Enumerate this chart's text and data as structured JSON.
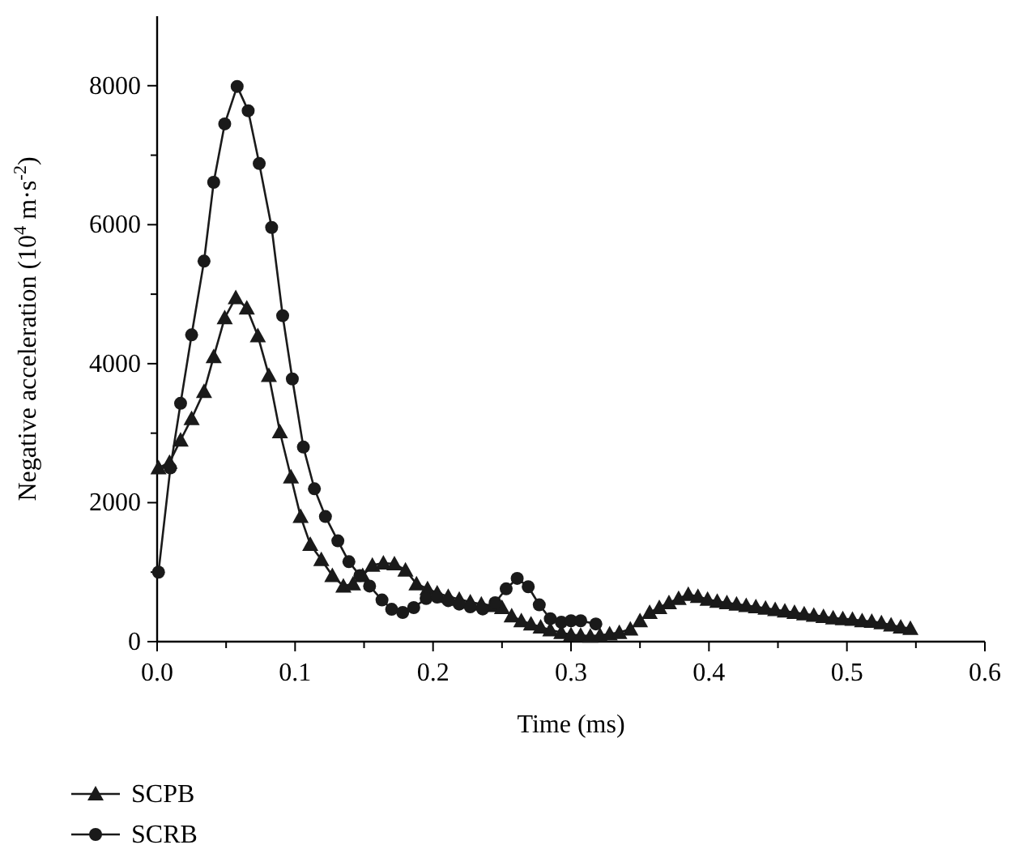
{
  "chart_data": {
    "type": "line",
    "xlabel": "Time (ms)",
    "ylabel": "Negative acceleration (10$^{4}$ m·s$^{-2}$)",
    "xlim": [
      0,
      0.6
    ],
    "ylim": [
      0,
      9000
    ],
    "xticks": [
      {
        "value": 0,
        "label": "0.0"
      },
      {
        "value": 0.05,
        "label": null
      },
      {
        "value": 0.1,
        "label": "0.1"
      },
      {
        "value": 0.15,
        "label": null
      },
      {
        "value": 0.2,
        "label": "0.2"
      },
      {
        "value": 0.25,
        "label": null
      },
      {
        "value": 0.3,
        "label": "0.3"
      },
      {
        "value": 0.35,
        "label": null
      },
      {
        "value": 0.4,
        "label": "0.4"
      },
      {
        "value": 0.45,
        "label": null
      },
      {
        "value": 0.5,
        "label": "0.5"
      },
      {
        "value": 0.55,
        "label": null
      },
      {
        "value": 0.6,
        "label": "0.6"
      }
    ],
    "yticks": [
      0,
      {
        "value": 1000,
        "label": null
      },
      2000,
      {
        "value": 3000,
        "label": null
      },
      4000,
      {
        "value": 5000,
        "label": null
      },
      6000,
      {
        "value": 7000,
        "label": null
      },
      8000
    ],
    "grid": false,
    "legend": "bottom",
    "line_style": "solid",
    "series": [
      {
        "name": "SCPB",
        "color": "#1a1a1a",
        "marker": "triangle",
        "x": [
          0.001,
          0.009,
          0.017,
          0.025,
          0.034,
          0.041,
          0.049,
          0.057,
          0.065,
          0.073,
          0.081,
          0.089,
          0.097,
          0.104,
          0.111,
          0.119,
          0.127,
          0.135,
          0.142,
          0.149,
          0.156,
          0.164,
          0.172,
          0.18,
          0.188,
          0.196,
          0.203,
          0.211,
          0.219,
          0.227,
          0.235,
          0.243,
          0.25,
          0.257,
          0.264,
          0.271,
          0.278,
          0.285,
          0.293,
          0.3,
          0.307,
          0.314,
          0.321,
          0.328,
          0.335,
          0.343,
          0.35,
          0.357,
          0.364,
          0.371,
          0.378,
          0.385,
          0.392,
          0.399,
          0.406,
          0.413,
          0.42,
          0.427,
          0.434,
          0.441,
          0.448,
          0.455,
          0.462,
          0.469,
          0.476,
          0.483,
          0.49,
          0.497,
          0.504,
          0.511,
          0.518,
          0.525,
          0.532,
          0.539,
          0.546
        ],
        "values": [
          2500,
          2580,
          2900,
          3210,
          3600,
          4100,
          4660,
          4950,
          4800,
          4400,
          3830,
          3020,
          2370,
          1800,
          1400,
          1180,
          950,
          800,
          830,
          950,
          1100,
          1130,
          1120,
          1030,
          830,
          760,
          700,
          650,
          610,
          570,
          540,
          520,
          490,
          370,
          300,
          255,
          210,
          170,
          130,
          100,
          90,
          80,
          90,
          110,
          130,
          180,
          300,
          420,
          490,
          560,
          620,
          680,
          650,
          610,
          580,
          560,
          540,
          520,
          500,
          480,
          460,
          440,
          420,
          400,
          380,
          360,
          340,
          330,
          320,
          300,
          290,
          270,
          240,
          210,
          190
        ]
      },
      {
        "name": "SCRB",
        "color": "#1a1a1a",
        "marker": "circle",
        "x": [
          0.001,
          0.0096,
          0.017,
          0.025,
          0.034,
          0.041,
          0.049,
          0.058,
          0.066,
          0.074,
          0.083,
          0.091,
          0.098,
          0.106,
          0.114,
          0.122,
          0.131,
          0.139,
          0.147,
          0.154,
          0.163,
          0.17,
          0.178,
          0.186,
          0.195,
          0.203,
          0.211,
          0.219,
          0.227,
          0.236,
          0.245,
          0.253,
          0.261,
          0.269,
          0.277,
          0.285,
          0.293,
          0.3,
          0.307,
          0.318
        ],
        "values": [
          1000,
          2500,
          3430,
          4415,
          5475,
          6610,
          7450,
          7990,
          7640,
          6880,
          5960,
          4690,
          3780,
          2800,
          2200,
          1800,
          1450,
          1150,
          950,
          800,
          600,
          465,
          420,
          490,
          620,
          640,
          590,
          540,
          500,
          470,
          560,
          760,
          910,
          790,
          530,
          330,
          280,
          300,
          300,
          255
        ]
      }
    ]
  }
}
